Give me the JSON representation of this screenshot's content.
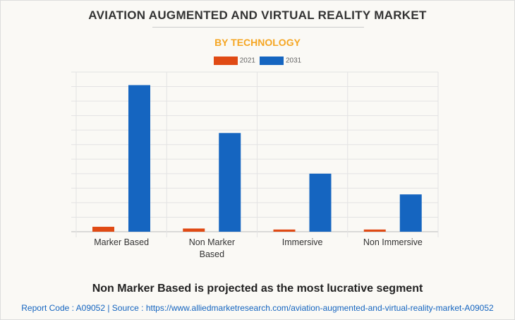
{
  "chart_data": {
    "type": "bar",
    "title": "AVIATION AUGMENTED AND VIRTUAL REALITY MARKET",
    "subtitle": "BY TECHNOLOGY",
    "categories": [
      "Marker Based",
      "Non Marker Based",
      "Immersive",
      "Non Immersive"
    ],
    "category_lines": [
      [
        "Marker Based"
      ],
      [
        "Non Marker",
        "Based"
      ],
      [
        "Immersive"
      ],
      [
        "Non Immersive"
      ]
    ],
    "series": [
      {
        "name": "2021",
        "color": "#e04a14",
        "values": [
          0.34,
          0.22,
          0.15,
          0.15
        ]
      },
      {
        "name": "2031",
        "color": "#1565c0",
        "values": [
          10.1,
          6.8,
          4.0,
          2.57
        ]
      }
    ],
    "ylim": [
      0,
      11
    ],
    "grid": true,
    "legend": "top-center",
    "xlabel": "",
    "ylabel": ""
  },
  "footer": {
    "headline": "Non Marker Based is projected as the most lucrative segment",
    "source": "Report Code : A09052  |  Source : https://www.alliedmarketresearch.com/aviation-augmented-and-virtual-reality-market-A09052"
  }
}
